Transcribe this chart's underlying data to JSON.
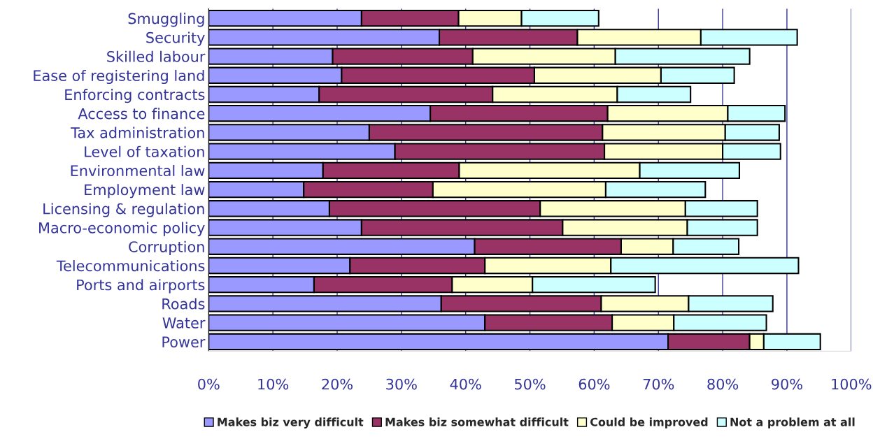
{
  "chart_data": {
    "type": "bar",
    "orientation": "horizontal",
    "stacked": true,
    "categories": [
      "Smuggling",
      "Security",
      "Skilled labour",
      "Ease of registering land",
      "Enforcing contracts",
      "Access to finance",
      "Tax administration",
      "Level of taxation",
      "Environmental law",
      "Employment law",
      "Licensing & regulation",
      "Macro-economic policy",
      "Corruption",
      "Telecommunications",
      "Ports and airports",
      "Roads",
      "Water",
      "Power"
    ],
    "series": [
      {
        "name": "Makes biz very difficult",
        "color": "#9999ff",
        "values": [
          23.8,
          35.9,
          19.3,
          20.7,
          17.2,
          34.5,
          25.0,
          29.0,
          17.8,
          14.8,
          18.8,
          23.8,
          41.4,
          22.0,
          16.4,
          36.2,
          43.0,
          71.5
        ]
      },
      {
        "name": "Makes biz somewhat difficult",
        "color": "#993366",
        "values": [
          15.1,
          21.5,
          21.8,
          30.0,
          27.0,
          27.6,
          36.3,
          32.6,
          21.2,
          20.1,
          32.8,
          31.3,
          22.8,
          21.0,
          21.5,
          24.9,
          19.8,
          12.7
        ]
      },
      {
        "name": "Could be improved",
        "color": "#ffffcc",
        "values": [
          9.8,
          19.2,
          22.2,
          19.7,
          19.4,
          18.7,
          19.1,
          18.4,
          28.1,
          26.9,
          22.6,
          19.4,
          8.1,
          19.6,
          12.5,
          13.6,
          9.6,
          2.2
        ]
      },
      {
        "name": "Not a problem at all",
        "color": "#ccffff",
        "values": [
          12.0,
          15.0,
          20.9,
          11.4,
          11.4,
          8.9,
          8.4,
          9.0,
          15.5,
          15.5,
          11.2,
          10.9,
          10.2,
          29.2,
          19.1,
          13.1,
          14.4,
          8.8
        ]
      }
    ],
    "xlim": [
      0,
      100
    ],
    "xticks": [
      {
        "value": 0,
        "label": "0%"
      },
      {
        "value": 10,
        "label": "10%"
      },
      {
        "value": 20,
        "label": "20%"
      },
      {
        "value": 30,
        "label": "30%"
      },
      {
        "value": 40,
        "label": "40%"
      },
      {
        "value": 50,
        "label": "50%"
      },
      {
        "value": 60,
        "label": "60%"
      },
      {
        "value": 70,
        "label": "70%"
      },
      {
        "value": 80,
        "label": "80%"
      },
      {
        "value": 90,
        "label": "90%"
      },
      {
        "value": 100,
        "label": "100%"
      }
    ],
    "grid": "x",
    "legend": "bottom"
  }
}
